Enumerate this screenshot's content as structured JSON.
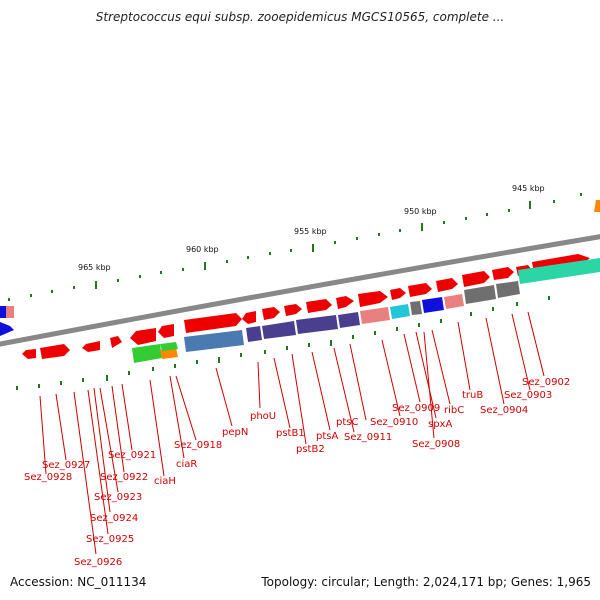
{
  "title": "Streptococcus equi subsp. zooepidemicus MGCS10565, complete ...",
  "accession_text": "Accession: NC_011134",
  "summary_text": "Topology: circular; Length: 2,024,171 bp; Genes: 1,965",
  "scale_ticks": [
    "945 kbp",
    "950 kbp",
    "955 kbp",
    "960 kbp",
    "965 kbp"
  ],
  "gene_labels": [
    "Sez_0902",
    "Sez_0903",
    "Sez_0904",
    "truB",
    "ribC",
    "Sez_0909",
    "spxA",
    "Sez_0910",
    "Sez_0908",
    "ptsC",
    "Sez_0911",
    "ptsA",
    "pstB1",
    "pstB2",
    "phoU",
    "pepN",
    "Sez_0918",
    "ciaR",
    "ciaH",
    "Sez_0921",
    "Sez_0922",
    "Sez_0923",
    "Sez_0924",
    "Sez_0925",
    "Sez_0926",
    "Sez_0927",
    "Sez_0928"
  ],
  "colors": {
    "gene": "#ee0000",
    "label": "#d10000",
    "backbone": "#888888",
    "tick": "#1f7a1f",
    "purple": "#4a3f8f",
    "teal": "#2ad6a6",
    "steelblue": "#4a7ab0",
    "gray": "#6f6f6f",
    "pink": "#e88080",
    "cyan": "#22c6d8",
    "blue": "#1010dd",
    "green": "#33cc33",
    "orange": "#ff8800"
  }
}
